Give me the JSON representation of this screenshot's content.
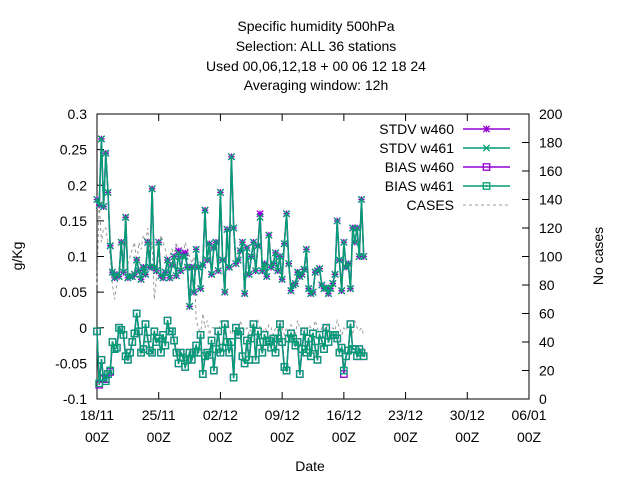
{
  "chart_data": {
    "type": "line",
    "title_lines": [
      "Specific humidity 500hPa",
      "Selection: ALL      36 stations",
      "Used  00,06,12,18  + 00 06 12 18 24",
      "Averaging window: 12h"
    ],
    "xlabel": "Date",
    "ylabel": "g/Kg",
    "y2label": "No cases",
    "ylim": [
      -0.1,
      0.3
    ],
    "y2lim": [
      0,
      200
    ],
    "yticks": [
      "-0.1",
      "-0.05",
      "0",
      "0.05",
      "0.1",
      "0.15",
      "0.2",
      "0.25",
      "0.3"
    ],
    "y2ticks": [
      "0",
      "20",
      "40",
      "60",
      "80",
      "100",
      "120",
      "140",
      "160",
      "180",
      "200"
    ],
    "xticks": [
      {
        "day": 0,
        "label": [
          "18/11",
          "00Z"
        ]
      },
      {
        "day": 7,
        "label": [
          "25/11",
          "00Z"
        ]
      },
      {
        "day": 14,
        "label": [
          "02/12",
          "00Z"
        ]
      },
      {
        "day": 21,
        "label": [
          "09/12",
          "00Z"
        ]
      },
      {
        "day": 28,
        "label": [
          "16/12",
          "00Z"
        ]
      },
      {
        "day": 35,
        "label": [
          "23/12",
          "00Z"
        ]
      },
      {
        "day": 42,
        "label": [
          "30/12",
          "00Z"
        ]
      },
      {
        "day": 49,
        "label": [
          "06/01",
          "00Z"
        ]
      }
    ],
    "xlim_days": [
      0,
      49
    ],
    "x_start_day": 0,
    "x_step_days": 0.25,
    "grid": false,
    "legend_position": "top-right",
    "series": [
      {
        "name": "STDV w460",
        "marker": "star",
        "color": "#9400D3",
        "axis": "y1",
        "values": [
          0.18,
          0.172,
          0.265,
          0.17,
          0.245,
          0.19,
          0.115,
          0.078,
          0.07,
          0.075,
          0.072,
          0.12,
          0.078,
          0.155,
          0.07,
          0.072,
          0.072,
          0.075,
          0.095,
          0.08,
          0.068,
          0.085,
          0.075,
          0.12,
          0.085,
          0.195,
          0.085,
          0.08,
          0.12,
          0.073,
          0.07,
          0.078,
          0.095,
          0.07,
          0.088,
          0.1,
          0.073,
          0.108,
          0.08,
          0.103,
          0.105,
          0.085,
          0.03,
          0.085,
          0.05,
          0.11,
          0.085,
          0.055,
          0.088,
          0.165,
          0.095,
          0.118,
          0.075,
          0.112,
          0.12,
          0.08,
          0.19,
          0.095,
          0.05,
          0.138,
          0.085,
          0.24,
          0.14,
          0.09,
          0.095,
          0.108,
          0.12,
          0.048,
          0.112,
          0.075,
          0.1,
          0.12,
          0.08,
          0.115,
          0.16,
          0.08,
          0.09,
          0.072,
          0.13,
          0.085,
          0.09,
          0.105,
          0.08,
          0.1,
          0.068,
          0.118,
          0.16,
          0.09,
          0.052,
          0.06,
          0.062,
          0.078,
          0.072,
          0.075,
          0.082,
          0.11,
          0.055,
          0.048,
          0.05,
          0.078,
          0.08,
          0.083,
          0.06,
          0.055,
          0.056,
          0.048,
          0.055,
          0.062,
          0.075,
          0.15,
          0.095,
          0.052,
          0.12,
          0.085,
          0.09,
          0.055,
          0.14,
          0.12,
          0.14,
          0.1,
          0.18,
          0.1
        ]
      },
      {
        "name": "STDV w461",
        "marker": "cross",
        "color": "#009E73",
        "axis": "y1",
        "values": [
          0.18,
          0.172,
          0.265,
          0.17,
          0.245,
          0.19,
          0.115,
          0.078,
          0.07,
          0.075,
          0.072,
          0.12,
          0.078,
          0.155,
          0.07,
          0.072,
          0.072,
          0.075,
          0.095,
          0.08,
          0.068,
          0.085,
          0.075,
          0.12,
          0.085,
          0.195,
          0.085,
          0.08,
          0.12,
          0.073,
          0.07,
          0.078,
          0.095,
          0.07,
          0.088,
          0.1,
          0.073,
          0.105,
          0.08,
          0.1,
          0.1,
          0.085,
          0.03,
          0.085,
          0.05,
          0.11,
          0.085,
          0.055,
          0.088,
          0.165,
          0.095,
          0.118,
          0.075,
          0.112,
          0.12,
          0.08,
          0.19,
          0.095,
          0.05,
          0.138,
          0.085,
          0.24,
          0.14,
          0.09,
          0.095,
          0.108,
          0.12,
          0.048,
          0.112,
          0.075,
          0.1,
          0.12,
          0.08,
          0.115,
          0.155,
          0.08,
          0.09,
          0.072,
          0.13,
          0.085,
          0.09,
          0.105,
          0.08,
          0.1,
          0.068,
          0.118,
          0.16,
          0.09,
          0.052,
          0.06,
          0.062,
          0.078,
          0.072,
          0.075,
          0.082,
          0.11,
          0.055,
          0.048,
          0.05,
          0.078,
          0.08,
          0.083,
          0.06,
          0.055,
          0.056,
          0.048,
          0.055,
          0.062,
          0.075,
          0.15,
          0.095,
          0.052,
          0.12,
          0.085,
          0.09,
          0.055,
          0.14,
          0.12,
          0.14,
          0.1,
          0.18,
          0.1
        ]
      },
      {
        "name": "BIAS w460",
        "marker": "square",
        "color": "#9400D3",
        "axis": "y1",
        "values": [
          -0.005,
          -0.08,
          -0.045,
          -0.072,
          -0.072,
          -0.065,
          -0.062,
          -0.02,
          -0.03,
          -0.028,
          0.0,
          -0.003,
          -0.01,
          -0.04,
          -0.045,
          -0.035,
          -0.02,
          -0.008,
          0.02,
          -0.005,
          -0.035,
          -0.03,
          0.005,
          -0.015,
          -0.032,
          -0.035,
          -0.005,
          -0.02,
          -0.015,
          -0.035,
          -0.01,
          -0.025,
          0.01,
          -0.005,
          -0.005,
          -0.018,
          -0.035,
          -0.05,
          -0.035,
          -0.042,
          -0.055,
          -0.045,
          -0.035,
          -0.045,
          -0.035,
          -0.025,
          -0.035,
          -0.01,
          -0.065,
          -0.04,
          -0.035,
          -0.038,
          -0.018,
          -0.06,
          -0.03,
          -0.005,
          -0.035,
          -0.028,
          0.005,
          -0.02,
          -0.035,
          -0.02,
          -0.07,
          0.0,
          -0.01,
          -0.005,
          -0.04,
          -0.05,
          -0.018,
          -0.045,
          -0.015,
          0.005,
          -0.045,
          -0.005,
          -0.02,
          -0.035,
          -0.01,
          -0.02,
          -0.018,
          -0.028,
          -0.015,
          -0.035,
          -0.015,
          0.005,
          -0.02,
          -0.055,
          -0.06,
          -0.015,
          -0.008,
          -0.015,
          -0.025,
          -0.02,
          -0.065,
          -0.03,
          -0.005,
          -0.035,
          -0.015,
          -0.04,
          -0.008,
          -0.028,
          -0.045,
          -0.01,
          -0.018,
          -0.03,
          0.0,
          -0.02,
          -0.01,
          -0.01,
          -0.01,
          -0.015,
          -0.035,
          -0.028,
          -0.065,
          -0.04,
          -0.032,
          0.005,
          -0.03,
          -0.03,
          -0.04,
          -0.03,
          -0.035,
          -0.04
        ]
      },
      {
        "name": "BIAS w461",
        "marker": "square-dot",
        "color": "#009E73",
        "axis": "y1",
        "values": [
          -0.005,
          -0.078,
          -0.045,
          -0.07,
          -0.075,
          -0.065,
          -0.06,
          -0.02,
          -0.03,
          -0.028,
          0.0,
          -0.003,
          -0.01,
          -0.04,
          -0.045,
          -0.035,
          -0.02,
          -0.008,
          0.02,
          -0.005,
          -0.035,
          -0.03,
          0.005,
          -0.015,
          -0.032,
          -0.035,
          -0.005,
          -0.02,
          -0.015,
          -0.035,
          -0.01,
          -0.025,
          0.01,
          -0.005,
          -0.005,
          -0.018,
          -0.035,
          -0.05,
          -0.035,
          -0.042,
          -0.055,
          -0.045,
          -0.035,
          -0.045,
          -0.035,
          -0.025,
          -0.035,
          -0.01,
          -0.065,
          -0.04,
          -0.035,
          -0.038,
          -0.018,
          -0.06,
          -0.03,
          -0.005,
          -0.035,
          -0.028,
          0.005,
          -0.02,
          -0.035,
          -0.02,
          -0.07,
          0.0,
          -0.01,
          -0.005,
          -0.04,
          -0.05,
          -0.018,
          -0.045,
          -0.015,
          0.005,
          -0.045,
          -0.005,
          -0.02,
          -0.035,
          -0.01,
          -0.02,
          -0.018,
          -0.028,
          -0.015,
          -0.035,
          -0.015,
          0.005,
          -0.02,
          -0.055,
          -0.06,
          -0.015,
          -0.008,
          -0.015,
          -0.025,
          -0.02,
          -0.065,
          -0.03,
          -0.005,
          -0.035,
          -0.015,
          -0.04,
          -0.008,
          -0.028,
          -0.045,
          -0.01,
          -0.018,
          -0.03,
          0.0,
          -0.02,
          -0.01,
          -0.01,
          -0.01,
          -0.015,
          -0.035,
          -0.028,
          -0.06,
          -0.04,
          -0.032,
          0.005,
          -0.03,
          -0.03,
          -0.04,
          -0.03,
          -0.035,
          -0.04
        ]
      },
      {
        "name": "CASES",
        "marker": "none",
        "dashed": true,
        "color": "#999999",
        "axis": "y2",
        "values": [
          80,
          140,
          110,
          120,
          120,
          110,
          100,
          80,
          70,
          80,
          90,
          110,
          100,
          110,
          95,
          100,
          105,
          110,
          95,
          110,
          105,
          115,
          110,
          120,
          100,
          110,
          70,
          85,
          100,
          115,
          110,
          105,
          95,
          100,
          105,
          100,
          110,
          100,
          105,
          100,
          110,
          105,
          100,
          95,
          100,
          55,
          50,
          45,
          60,
          50,
          55,
          45,
          50,
          50,
          45,
          45,
          55,
          50,
          45,
          55,
          50,
          45,
          48,
          50,
          45,
          55,
          50,
          48,
          50,
          45,
          52,
          50,
          48,
          55,
          50,
          45,
          50,
          48,
          52,
          50,
          45,
          50,
          48,
          55,
          50,
          45,
          50,
          48,
          52,
          50,
          45,
          55,
          50,
          48,
          50,
          45,
          52,
          50,
          48,
          55,
          50,
          45,
          50,
          48,
          52,
          50,
          45,
          50,
          48,
          55,
          50,
          45,
          50,
          48,
          52,
          50,
          45,
          55,
          50,
          48,
          50,
          45
        ]
      }
    ]
  }
}
